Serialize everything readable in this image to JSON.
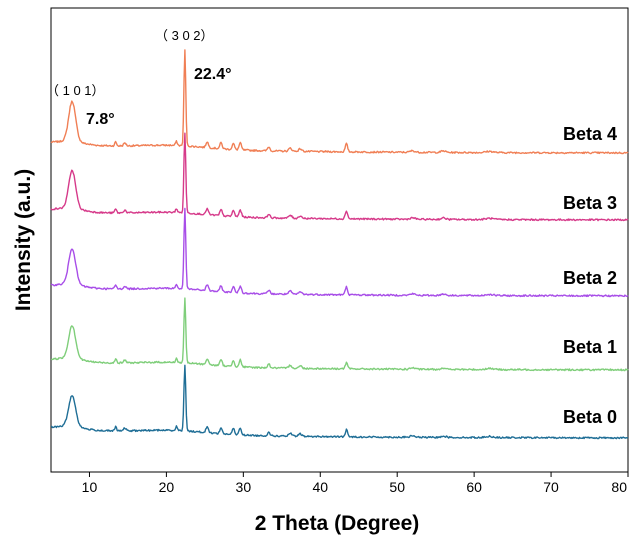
{
  "chart_data": {
    "type": "line",
    "xlabel": "2 Theta (Degree)",
    "ylabel": "Intensity (a.u.)",
    "xlim": [
      5,
      80
    ],
    "xticks": [
      10,
      20,
      30,
      40,
      50,
      60,
      70,
      80
    ],
    "grid": false,
    "y_ticks_shown": false,
    "stacked_offset": true,
    "peaks": [
      {
        "x": 7.8,
        "label": "7.8°",
        "hkl": "（ 1 0 1）"
      },
      {
        "x": 22.4,
        "label": "22.4°",
        "hkl": "（ 3 0 2）"
      }
    ],
    "minor_peaks": [
      13.4,
      14.6,
      21.3,
      25.3,
      27.1,
      28.7,
      29.6,
      33.3,
      36.1,
      37.4,
      43.4,
      52.0,
      56.0,
      62.0,
      68.0
    ],
    "series": [
      {
        "name": "Beta 4",
        "color": "#f07f55",
        "offset": 4,
        "peak101": 40,
        "peak302": 96,
        "peak434": 8
      },
      {
        "name": "Beta 3",
        "color": "#d63a8a",
        "offset": 3,
        "peak101": 38,
        "peak302": 80,
        "peak434": 8
      },
      {
        "name": "Beta 2",
        "color": "#a84ee8",
        "offset": 2,
        "peak101": 36,
        "peak302": 80,
        "peak434": 8
      },
      {
        "name": "Beta 1",
        "color": "#7fce7a",
        "offset": 1,
        "peak101": 33,
        "peak302": 64,
        "peak434": 6
      },
      {
        "name": "Beta 0",
        "color": "#1f6e96",
        "offset": 0,
        "peak101": 31,
        "peak302": 66,
        "peak434": 7
      }
    ]
  }
}
